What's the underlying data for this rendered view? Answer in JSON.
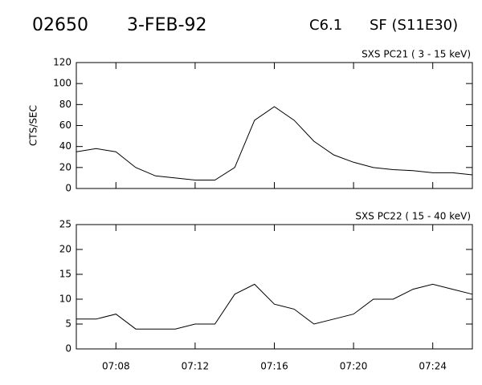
{
  "header": {
    "id": "02650",
    "date": "3-FEB-92",
    "class": "C6.1",
    "location": "SF (S11E30)"
  },
  "chart_data": [
    {
      "type": "line",
      "title": "SXS PC21  (  3 - 15 keV)",
      "y_label": "CTS/SEC",
      "x": [
        "07:06",
        "07:07",
        "07:08",
        "07:09",
        "07:10",
        "07:11",
        "07:12",
        "07:13",
        "07:14",
        "07:15",
        "07:16",
        "07:17",
        "07:18",
        "07:19",
        "07:20",
        "07:21",
        "07:22",
        "07:23",
        "07:24",
        "07:25",
        "07:26"
      ],
      "series": [
        {
          "name": "SXS PC21",
          "color": "#000000",
          "values": [
            35,
            38,
            35,
            20,
            12,
            10,
            8,
            8,
            20,
            65,
            78,
            65,
            45,
            32,
            25,
            20,
            18,
            17,
            15,
            15,
            13
          ]
        }
      ],
      "xlim": [
        "07:06",
        "07:26"
      ],
      "ylim": [
        0,
        120
      ],
      "yticks": [
        0,
        20,
        40,
        60,
        80,
        100,
        120
      ]
    },
    {
      "type": "line",
      "title": "SXS PC22  ( 15 - 40 keV)",
      "x": [
        "07:06",
        "07:07",
        "07:08",
        "07:09",
        "07:10",
        "07:11",
        "07:12",
        "07:13",
        "07:14",
        "07:15",
        "07:16",
        "07:17",
        "07:18",
        "07:19",
        "07:20",
        "07:21",
        "07:22",
        "07:23",
        "07:24",
        "07:25",
        "07:26"
      ],
      "series": [
        {
          "name": "SXS PC22",
          "color": "#000000",
          "values": [
            6,
            6,
            7,
            4,
            4,
            4,
            5,
            5,
            11,
            13,
            9,
            8,
            5,
            6,
            7,
            10,
            10,
            12,
            13,
            12,
            11
          ]
        }
      ],
      "xlim": [
        "07:06",
        "07:26"
      ],
      "ylim": [
        0,
        25
      ],
      "yticks": [
        0,
        5,
        10,
        15,
        20,
        25
      ],
      "xticks": [
        "07:08",
        "07:12",
        "07:16",
        "07:20",
        "07:24"
      ]
    }
  ]
}
